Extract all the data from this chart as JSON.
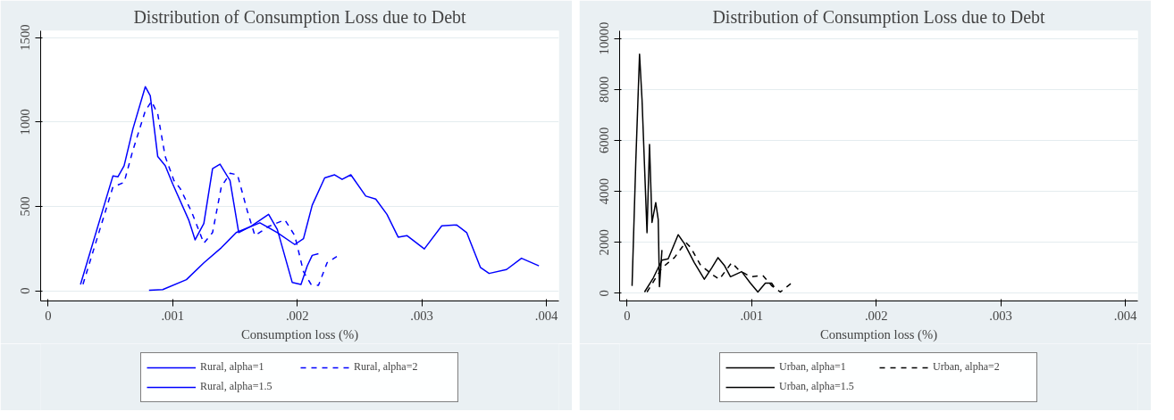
{
  "chart_data": [
    {
      "type": "line",
      "title": "Distribution of Consumption Loss due to Debt",
      "xlabel": "Consumption loss (%)",
      "xlim": [
        -6e-05,
        0.0041
      ],
      "ylim": [
        -60,
        1540
      ],
      "xticks": [
        {
          "value": 0,
          "label": "0"
        },
        {
          "value": 0.001,
          "label": ".001"
        },
        {
          "value": 0.002,
          "label": ".002"
        },
        {
          "value": 0.003,
          "label": ".003"
        },
        {
          "value": 0.004,
          "label": ".004"
        }
      ],
      "yticks": [
        {
          "value": 0,
          "label": "0"
        },
        500,
        1000,
        1500
      ],
      "grid": "y",
      "legend": "bottom",
      "series": [
        {
          "name": "Rural, alpha=1",
          "color": "#0000ff",
          "line_style": "solid",
          "x": [
            0.00026,
            0.00052,
            0.00056,
            0.00061,
            0.00068,
            0.00078,
            0.00082,
            0.00088,
            0.00094,
            0.001,
            0.00113,
            0.00118,
            0.00125,
            0.00132,
            0.00138,
            0.00146,
            0.00153,
            0.00163,
            0.00177,
            0.00184,
            0.00196,
            0.00203,
            0.00208,
            0.00212,
            0.00217
          ],
          "values": [
            38,
            680,
            675,
            741,
            957,
            1209,
            1155,
            795,
            741,
            633,
            417,
            302,
            399,
            723,
            750,
            653,
            345,
            383,
            453,
            363,
            49,
            38,
            147,
            210,
            220
          ]
        },
        {
          "name": "Rural, alpha=2",
          "color": "#0000ff",
          "line_style": "dashed",
          "x": [
            0.00028,
            0.00052,
            0.00061,
            0.00068,
            0.00078,
            0.00083,
            0.00088,
            0.00094,
            0.00101,
            0.00106,
            0.00115,
            0.00125,
            0.00132,
            0.00139,
            0.00146,
            0.00152,
            0.0016,
            0.00166,
            0.00177,
            0.0019,
            0.00198,
            0.00205,
            0.00211,
            0.00217,
            0.00224,
            0.00232
          ],
          "values": [
            39,
            615,
            642,
            831,
            1065,
            1122,
            1047,
            795,
            653,
            606,
            471,
            282,
            345,
            615,
            696,
            687,
            471,
            327,
            381,
            421,
            327,
            113,
            39,
            32,
            167,
            205
          ]
        },
        {
          "name": "Rural, alpha=1.5",
          "color": "#0000ff",
          "line_style": "solid",
          "x": [
            0.00081,
            0.00092,
            0.00111,
            0.00125,
            0.00139,
            0.00151,
            0.0017,
            0.00184,
            0.00198,
            0.00205,
            0.00212,
            0.00222,
            0.0023,
            0.00236,
            0.00243,
            0.00255,
            0.00263,
            0.00272,
            0.00281,
            0.00288,
            0.00302,
            0.00316,
            0.00328,
            0.00336,
            0.00347,
            0.00354,
            0.00368,
            0.0038,
            0.00394
          ],
          "values": [
            4,
            7,
            66,
            166,
            255,
            345,
            403,
            345,
            274,
            309,
            507,
            669,
            687,
            660,
            687,
            561,
            543,
            453,
            318,
            327,
            248,
            385,
            390,
            345,
            139,
            103,
            126,
            193,
            148
          ]
        }
      ]
    },
    {
      "type": "line",
      "title": "Distribution of Consumption Loss due to Debt",
      "xlabel": "Consumption loss (%)",
      "xlim": [
        -6e-05,
        0.0041
      ],
      "ylim": [
        -300,
        10300
      ],
      "xticks": [
        {
          "value": 0,
          "label": "0"
        },
        {
          "value": 0.001,
          "label": ".001"
        },
        {
          "value": 0.002,
          "label": ".002"
        },
        {
          "value": 0.003,
          "label": ".003"
        },
        {
          "value": 0.004,
          "label": ".004"
        }
      ],
      "yticks": [
        {
          "value": 0,
          "label": "0"
        },
        2000,
        4000,
        6000,
        8000,
        10000
      ],
      "grid": "y",
      "legend": "bottom",
      "series": [
        {
          "name": "Urban, alpha=1",
          "color": "#000000",
          "line_style": "solid",
          "x": [
            4e-05,
            7e-05,
            0.0001,
            0.00012,
            0.00016,
            0.00018,
            0.0002,
            0.00023,
            0.00025,
            0.00026,
            0.00028
          ],
          "values": [
            290,
            5180,
            9380,
            7600,
            2380,
            5840,
            2780,
            3560,
            2900,
            260,
            1700
          ]
        },
        {
          "name": "Urban, alpha=2",
          "color": "#000000",
          "line_style": "dashed",
          "x": [
            0.00016,
            0.00028,
            0.00038,
            0.00047,
            0.00051,
            0.00059,
            0.00068,
            0.00074,
            0.00084,
            0.0009,
            0.00099,
            0.00109,
            0.00116,
            0.00123,
            0.00132
          ],
          "values": [
            50,
            1000,
            1400,
            2000,
            1800,
            1100,
            750,
            550,
            1200,
            900,
            650,
            700,
            300,
            50,
            400
          ]
        },
        {
          "name": "Urban, alpha=1.5",
          "color": "#000000",
          "line_style": "solid",
          "x": [
            0.00014,
            0.00021,
            0.00028,
            0.00033,
            0.00041,
            0.00046,
            0.00054,
            0.00062,
            0.00068,
            0.00073,
            0.00078,
            0.00083,
            0.00092,
            0.00099,
            0.00105,
            0.00111,
            0.00116,
            0.00118
          ],
          "values": [
            50,
            600,
            1300,
            1350,
            2300,
            1950,
            1200,
            550,
            1000,
            1400,
            1100,
            650,
            850,
            400,
            50,
            400,
            400,
            250
          ]
        }
      ]
    }
  ]
}
